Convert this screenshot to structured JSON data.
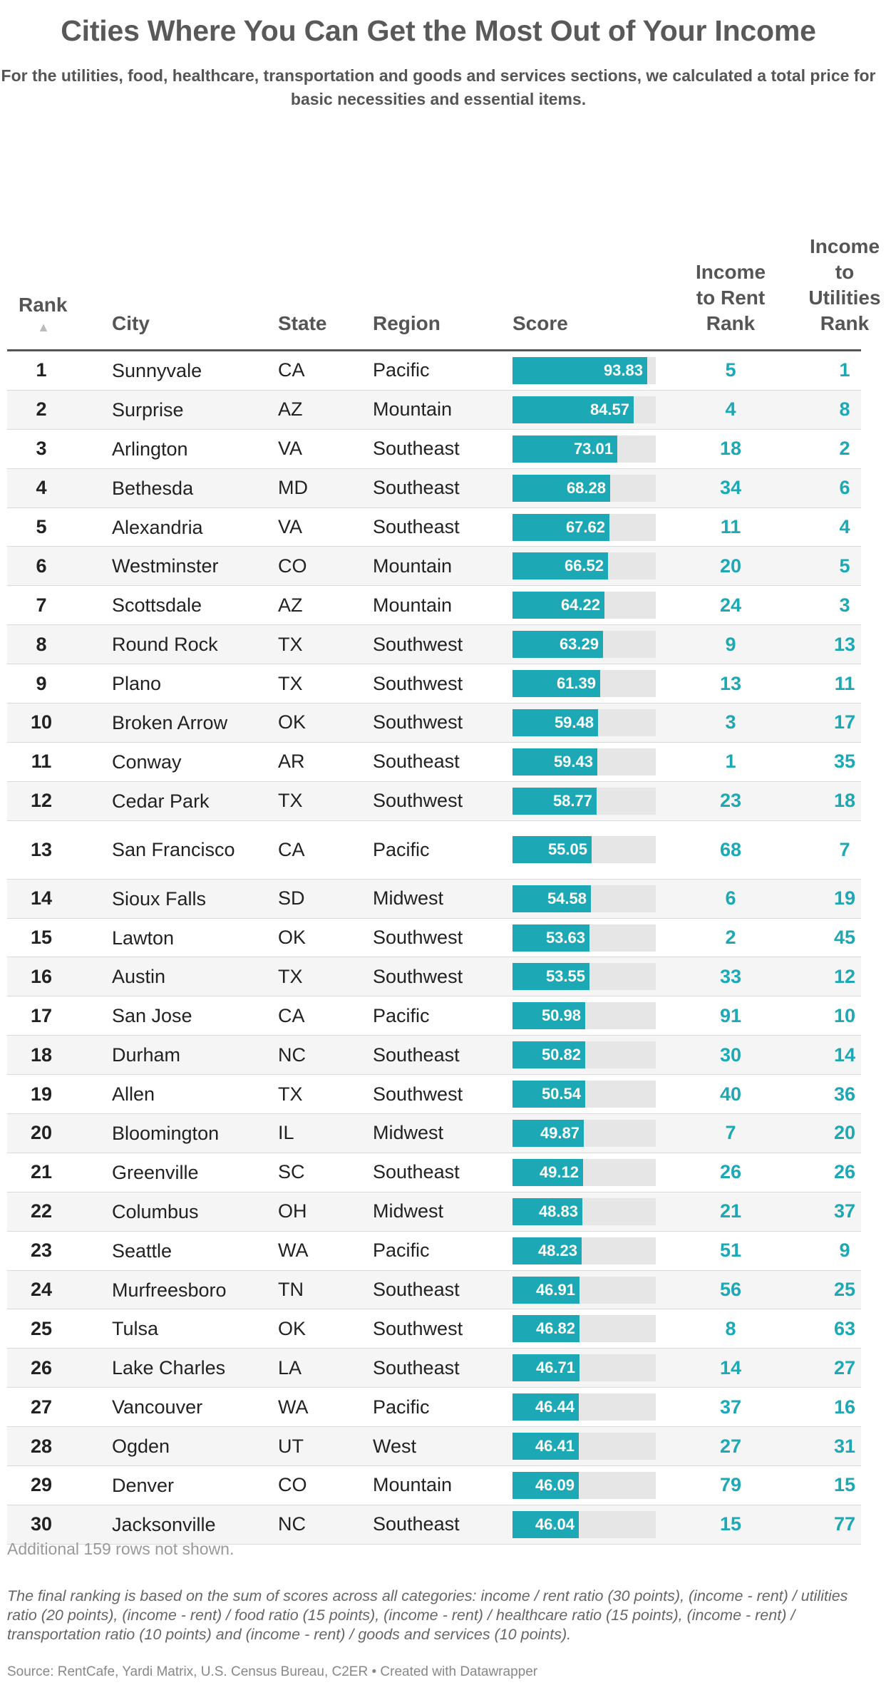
{
  "title": "Cities Where You Can Get the Most Out of Your Income",
  "subtitle": "For the utilities, food, healthcare, transportation and goods and services sections, we calculated a total price for basic necessities and essential items.",
  "columns": {
    "rank": "Rank",
    "sort_indicator": "▲",
    "city": "City",
    "state": "State",
    "region": "Region",
    "score": "Score",
    "income_rent": "Income to Rent Rank",
    "income_util": "Income to Utilities Rank"
  },
  "colors": {
    "bar": "#1ca8b4",
    "track": "#e6e6e6",
    "accent_text": "#1ca8b4"
  },
  "chart_data": {
    "type": "table",
    "score_max": 100,
    "rows": [
      {
        "rank": "1",
        "city": "Sunnyvale",
        "state": "CA",
        "region": "Pacific",
        "score": 93.83,
        "income_rent": "5",
        "income_util": "1"
      },
      {
        "rank": "2",
        "city": "Surprise",
        "state": "AZ",
        "region": "Mountain",
        "score": 84.57,
        "income_rent": "4",
        "income_util": "8"
      },
      {
        "rank": "3",
        "city": "Arlington",
        "state": "VA",
        "region": "Southeast",
        "score": 73.01,
        "income_rent": "18",
        "income_util": "2"
      },
      {
        "rank": "4",
        "city": "Bethesda",
        "state": "MD",
        "region": "Southeast",
        "score": 68.28,
        "income_rent": "34",
        "income_util": "6"
      },
      {
        "rank": "5",
        "city": "Alexandria",
        "state": "VA",
        "region": "Southeast",
        "score": 67.62,
        "income_rent": "11",
        "income_util": "4"
      },
      {
        "rank": "6",
        "city": "Westminster",
        "state": "CO",
        "region": "Mountain",
        "score": 66.52,
        "income_rent": "20",
        "income_util": "5"
      },
      {
        "rank": "7",
        "city": "Scottsdale",
        "state": "AZ",
        "region": "Mountain",
        "score": 64.22,
        "income_rent": "24",
        "income_util": "3"
      },
      {
        "rank": "8",
        "city": "Round Rock",
        "state": "TX",
        "region": "Southwest",
        "score": 63.29,
        "income_rent": "9",
        "income_util": "13"
      },
      {
        "rank": "9",
        "city": "Plano",
        "state": "TX",
        "region": "Southwest",
        "score": 61.39,
        "income_rent": "13",
        "income_util": "11"
      },
      {
        "rank": "10",
        "city": "Broken Arrow",
        "state": "OK",
        "region": "Southwest",
        "score": 59.48,
        "income_rent": "3",
        "income_util": "17"
      },
      {
        "rank": "11",
        "city": "Conway",
        "state": "AR",
        "region": "Southeast",
        "score": 59.43,
        "income_rent": "1",
        "income_util": "35"
      },
      {
        "rank": "12",
        "city": "Cedar Park",
        "state": "TX",
        "region": "Southwest",
        "score": 58.77,
        "income_rent": "23",
        "income_util": "18"
      },
      {
        "rank": "13",
        "city": "San Francisco",
        "state": "CA",
        "region": "Pacific",
        "score": 55.05,
        "income_rent": "68",
        "income_util": "7"
      },
      {
        "rank": "14",
        "city": "Sioux Falls",
        "state": "SD",
        "region": "Midwest",
        "score": 54.58,
        "income_rent": "6",
        "income_util": "19"
      },
      {
        "rank": "15",
        "city": "Lawton",
        "state": "OK",
        "region": "Southwest",
        "score": 53.63,
        "income_rent": "2",
        "income_util": "45"
      },
      {
        "rank": "16",
        "city": "Austin",
        "state": "TX",
        "region": "Southwest",
        "score": 53.55,
        "income_rent": "33",
        "income_util": "12"
      },
      {
        "rank": "17",
        "city": "San Jose",
        "state": "CA",
        "region": "Pacific",
        "score": 50.98,
        "income_rent": "91",
        "income_util": "10"
      },
      {
        "rank": "18",
        "city": "Durham",
        "state": "NC",
        "region": "Southeast",
        "score": 50.82,
        "income_rent": "30",
        "income_util": "14"
      },
      {
        "rank": "19",
        "city": "Allen",
        "state": "TX",
        "region": "Southwest",
        "score": 50.54,
        "income_rent": "40",
        "income_util": "36"
      },
      {
        "rank": "20",
        "city": "Bloomington",
        "state": "IL",
        "region": "Midwest",
        "score": 49.87,
        "income_rent": "7",
        "income_util": "20"
      },
      {
        "rank": "21",
        "city": "Greenville",
        "state": "SC",
        "region": "Southeast",
        "score": 49.12,
        "income_rent": "26",
        "income_util": "26"
      },
      {
        "rank": "22",
        "city": "Columbus",
        "state": "OH",
        "region": "Midwest",
        "score": 48.83,
        "income_rent": "21",
        "income_util": "37"
      },
      {
        "rank": "23",
        "city": "Seattle",
        "state": "WA",
        "region": "Pacific",
        "score": 48.23,
        "income_rent": "51",
        "income_util": "9"
      },
      {
        "rank": "24",
        "city": "Murfreesboro",
        "state": "TN",
        "region": "Southeast",
        "score": 46.91,
        "income_rent": "56",
        "income_util": "25"
      },
      {
        "rank": "25",
        "city": "Tulsa",
        "state": "OK",
        "region": "Southwest",
        "score": 46.82,
        "income_rent": "8",
        "income_util": "63"
      },
      {
        "rank": "26",
        "city": "Lake Charles",
        "state": "LA",
        "region": "Southeast",
        "score": 46.71,
        "income_rent": "14",
        "income_util": "27"
      },
      {
        "rank": "27",
        "city": "Vancouver",
        "state": "WA",
        "region": "Pacific",
        "score": 46.44,
        "income_rent": "37",
        "income_util": "16"
      },
      {
        "rank": "28",
        "city": "Ogden",
        "state": "UT",
        "region": "West",
        "score": 46.41,
        "income_rent": "27",
        "income_util": "31"
      },
      {
        "rank": "29",
        "city": "Denver",
        "state": "CO",
        "region": "Mountain",
        "score": 46.09,
        "income_rent": "79",
        "income_util": "15"
      },
      {
        "rank": "30",
        "city": "Jacksonville",
        "state": "NC",
        "region": "Southeast",
        "score": 46.04,
        "income_rent": "15",
        "income_util": "77"
      }
    ]
  },
  "footer": {
    "rows_not_shown": "Additional 159 rows not shown.",
    "notes": "The final ranking is based on the sum of scores across all categories: income / rent ratio (30 points), (income - rent) / utilities ratio (20 points), (income - rent) / food ratio (15 points), (income - rent) / healthcare ratio (15 points), (income - rent) / transportation ratio (10 points) and (income - rent) / goods and services (10 points).",
    "source": "Source: RentCafe, Yardi Matrix, U.S. Census Bureau, C2ER • Created with Datawrapper"
  }
}
